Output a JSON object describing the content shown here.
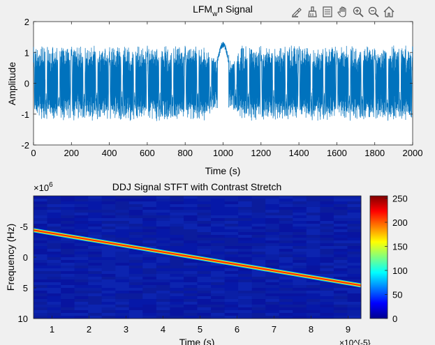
{
  "toolbar": {
    "buttons": [
      "brush-icon",
      "eraser-icon",
      "legend-icon",
      "pan-hand-icon",
      "zoom-in-icon",
      "zoom-out-icon",
      "home-icon"
    ]
  },
  "colors": {
    "line": "#0072bd",
    "background": "#f0f0f0",
    "axes_bg": "#ffffff",
    "spectrogram_bg": "#0a1a9a",
    "ridge": "#ff2a00"
  },
  "chart_data": [
    {
      "type": "line",
      "title_main": "LFM",
      "title_sub": "w",
      "title_tail": "n Signal",
      "xlabel": "Time (s)",
      "ylabel": "Amplitude",
      "xlim": [
        0,
        2000
      ],
      "ylim": [
        -2,
        2
      ],
      "xticks": [
        "0",
        "200",
        "400",
        "600",
        "800",
        "1000",
        "1200",
        "1400",
        "1600",
        "1800",
        "2000"
      ],
      "yticks": [
        "2",
        "1",
        "0",
        "-1",
        "-2"
      ],
      "grid": false,
      "description_series": {
        "name": "",
        "envelope_x": [
          0,
          100,
          300,
          500,
          700,
          900,
          960,
          1000,
          1040,
          1100,
          1300,
          1500,
          1700,
          1900,
          2000
        ],
        "envelope_amp": [
          1.0,
          1.0,
          1.0,
          1.0,
          1.0,
          1.0,
          0.6,
          1.3,
          0.6,
          1.0,
          1.0,
          1.0,
          1.0,
          1.0,
          1.0
        ]
      }
    },
    {
      "type": "heatmap",
      "title": "DDJ Signal STFT with Contrast Stretch",
      "xlabel": "Time (s)",
      "ylabel": "Frequency (Hz)",
      "x_exponent_label": "×10^{-5}",
      "y_exponent_label_base": "×10",
      "y_exponent_label_power": "6",
      "xlim": [
        0.5,
        9.35
      ],
      "ylim": [
        -10,
        10
      ],
      "xticks": [
        "1",
        "2",
        "3",
        "4",
        "5",
        "6",
        "7",
        "8",
        "9"
      ],
      "yticks": [
        "-5",
        "0",
        "5",
        "10"
      ],
      "ridge": {
        "x": [
          0.5,
          9.35
        ],
        "y": [
          -4.4,
          4.6
        ]
      },
      "colorbar": {
        "min": 0,
        "max": 255,
        "ticks": [
          "250",
          "200",
          "150",
          "100",
          "50",
          "0"
        ],
        "colormap": "jet"
      }
    }
  ]
}
